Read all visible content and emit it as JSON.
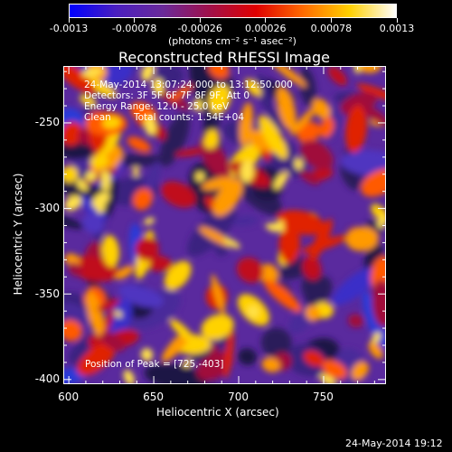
{
  "colorbar": {
    "tick_labels": [
      "-0.0013",
      "-0.00078",
      "-0.00026",
      "0.00026",
      "0.00078",
      "0.0013"
    ],
    "unit_label": "(photons cm⁻² s⁻¹ asec⁻²)",
    "range": [
      -0.0013,
      0.0013
    ],
    "colors": [
      "#0000ff",
      "#4a1fbf",
      "#6a2a9a",
      "#a0104a",
      "#e00000",
      "#ff6a00",
      "#ffd000",
      "#ffffff"
    ]
  },
  "chart_data": {
    "type": "heatmap",
    "title": "Reconstructed RHESSI Image",
    "xlabel": "Heliocentric X (arcsec)",
    "ylabel": "Heliocentric Y (arcsec)",
    "x_ticks": [
      "600",
      "650",
      "700",
      "750"
    ],
    "y_ticks": [
      "-250",
      "-300",
      "-350",
      "-400"
    ],
    "xlim": [
      597,
      787
    ],
    "ylim": [
      -403,
      -217
    ],
    "annotations": {
      "time_range": "24-May-2014 13:07:24.000 to 13:12:50.000",
      "detectors": "Detectors: 3F 5F 6F 7F 8F 9F, Att 0",
      "energy_range": "Energy Range: 12.0 - 25.0 keV",
      "clean_label": "Clean",
      "total_counts": "Total counts: 1.54E+04",
      "peak": "Position of Peak = [725,-403]"
    }
  },
  "footer": {
    "timestamp": "24-May-2014 19:12"
  }
}
